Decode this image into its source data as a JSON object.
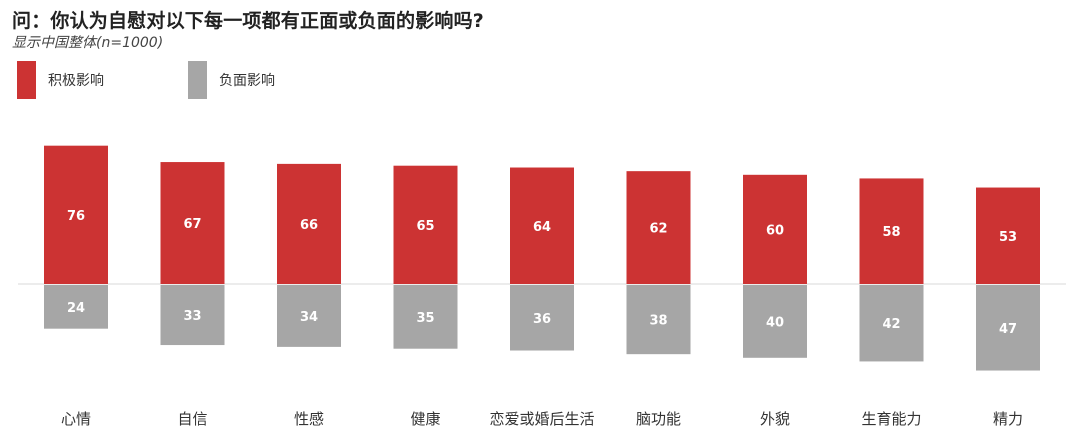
{
  "chart_data": {
    "type": "bar",
    "title": "问：你认为自慰对以下每一项都有正面或负面的影响吗?",
    "subtitle": "显示中国整体(n=1000)",
    "categories": [
      "心情",
      "自信",
      "性感",
      "健康",
      "恋爱或婚后生活",
      "脑功能",
      "外貌",
      "生育能力",
      "精力"
    ],
    "series": [
      {
        "name": "积极影响",
        "values": [
          76,
          67,
          66,
          65,
          64,
          62,
          60,
          58,
          53
        ],
        "color": "#cc3333"
      },
      {
        "name": "负面影响",
        "values": [
          24,
          33,
          34,
          35,
          36,
          38,
          40,
          42,
          47
        ],
        "color": "#a6a6a6"
      }
    ],
    "stacking": "diverging",
    "legend_position": "top-left",
    "grid": false
  }
}
